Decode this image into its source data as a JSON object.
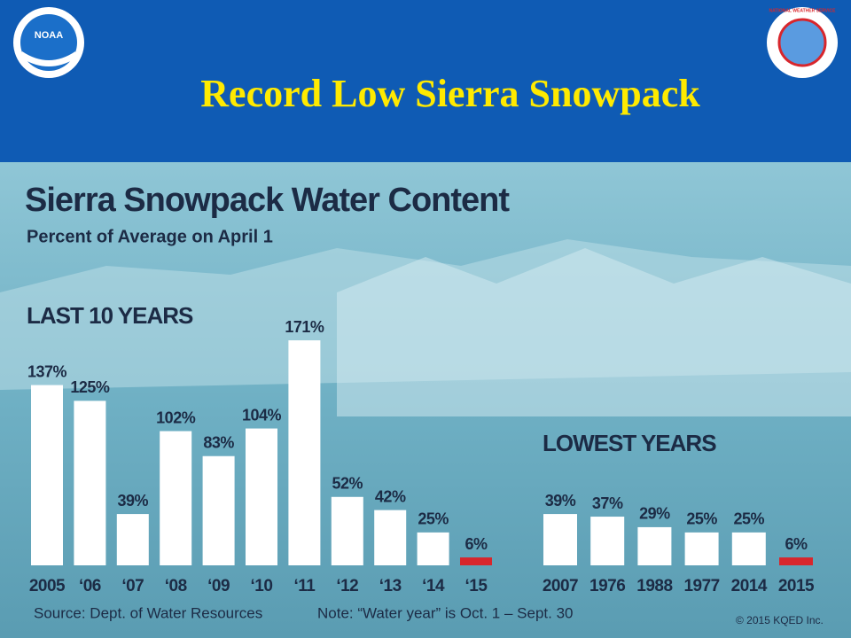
{
  "header": {
    "title": "Record Low Sierra Snowpack",
    "logo_left": "NOAA",
    "logo_right": "NATIONAL WEATHER SERVICE"
  },
  "chart_data": [
    {
      "type": "bar",
      "title": "Sierra Snowpack Water Content",
      "subtitle": "Percent of Average on April 1",
      "heading": "LAST 10 YEARS",
      "categories": [
        "2005",
        "‘06",
        "‘07",
        "‘08",
        "‘09",
        "‘10",
        "‘11",
        "‘12",
        "‘13",
        "‘14",
        "‘15"
      ],
      "values": [
        137,
        125,
        39,
        102,
        83,
        104,
        171,
        52,
        42,
        25,
        6
      ],
      "value_labels": [
        "137%",
        "125%",
        "39%",
        "102%",
        "83%",
        "104%",
        "171%",
        "52%",
        "42%",
        "25%",
        "6%"
      ],
      "colors": [
        "#ffffff",
        "#ffffff",
        "#ffffff",
        "#ffffff",
        "#ffffff",
        "#ffffff",
        "#ffffff",
        "#ffffff",
        "#ffffff",
        "#ffffff",
        "#d8262c"
      ]
    },
    {
      "type": "bar",
      "heading": "LOWEST YEARS",
      "categories": [
        "2007",
        "1976",
        "1988",
        "1977",
        "2014",
        "2015"
      ],
      "values": [
        39,
        37,
        29,
        25,
        25,
        6
      ],
      "value_labels": [
        "39%",
        "37%",
        "29%",
        "25%",
        "25%",
        "6%"
      ],
      "colors": [
        "#ffffff",
        "#ffffff",
        "#ffffff",
        "#ffffff",
        "#ffffff",
        "#d8262c"
      ]
    }
  ],
  "footer": {
    "source": "Source:  Dept. of Water Resources",
    "note": "Note:  “Water year” is Oct. 1 – Sept. 30",
    "copyright": "© 2015 KQED Inc."
  }
}
